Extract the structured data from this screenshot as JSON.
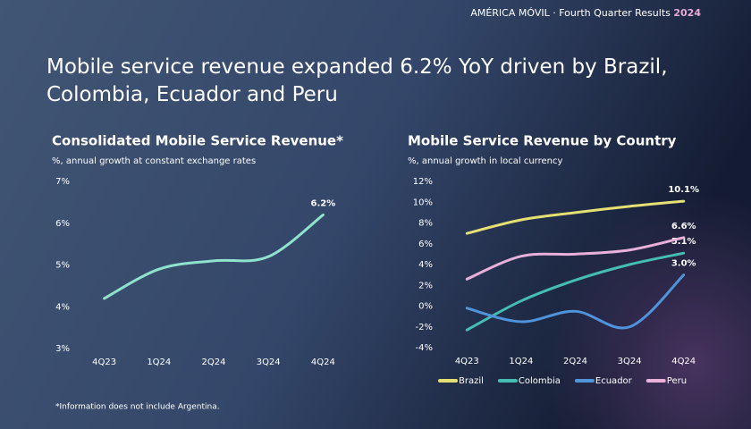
{
  "header": {
    "brand": "AMÉRICA MÓVIL · Fourth Quarter Results",
    "year": "2024"
  },
  "headline": "Mobile service revenue expanded 6.2% YoY driven by Brazil, Colombia, Ecuador and Peru",
  "footnote": "*Information does not include Argentina.",
  "chart_data": [
    {
      "type": "line",
      "title": "Consolidated Mobile Service Revenue*",
      "subtitle": "%, annual growth at constant exchange rates",
      "categories": [
        "4Q23",
        "1Q24",
        "2Q24",
        "3Q24",
        "4Q24"
      ],
      "series": [
        {
          "name": "Consolidated",
          "color": "#8fe3cc",
          "values": [
            4.2,
            4.9,
            5.1,
            5.2,
            6.2
          ],
          "value_labels": [
            null,
            null,
            null,
            null,
            "6.2%"
          ]
        }
      ],
      "legend": false,
      "ylim": [
        3,
        7
      ],
      "yticks": [
        {
          "value": 3,
          "label": "3%"
        },
        {
          "value": 4,
          "label": "4%"
        },
        {
          "value": 5,
          "label": "5%"
        },
        {
          "value": 6,
          "label": "6%"
        },
        {
          "value": 7,
          "label": "7%"
        }
      ]
    },
    {
      "type": "line",
      "title": "Mobile Service Revenue by Country",
      "subtitle": "%, annual growth in local currency",
      "categories": [
        "4Q23",
        "1Q24",
        "2Q24",
        "3Q24",
        "4Q24"
      ],
      "series": [
        {
          "name": "Brazil",
          "color": "#e6df73",
          "values": [
            7.0,
            8.3,
            9.0,
            9.6,
            10.1
          ],
          "value_labels": [
            null,
            null,
            null,
            null,
            "10.1%"
          ]
        },
        {
          "name": "Colombia",
          "color": "#45bdb3",
          "values": [
            -2.3,
            0.5,
            2.5,
            4.0,
            5.1
          ],
          "value_labels": [
            null,
            null,
            null,
            null,
            "5.1%"
          ]
        },
        {
          "name": "Ecuador",
          "color": "#4f93db",
          "values": [
            -0.2,
            -1.5,
            -0.5,
            -2.0,
            3.0
          ],
          "value_labels": [
            null,
            null,
            null,
            null,
            "3.0%"
          ]
        },
        {
          "name": "Peru",
          "color": "#eab0dc",
          "values": [
            2.6,
            4.8,
            5.0,
            5.4,
            6.6
          ],
          "value_labels": [
            null,
            null,
            null,
            null,
            "6.6%"
          ]
        }
      ],
      "legend": "bottom",
      "ylim": [
        -4,
        12
      ],
      "yticks": [
        {
          "value": -4,
          "label": "-4%"
        },
        {
          "value": -2,
          "label": "-2%"
        },
        {
          "value": 0,
          "label": "0%"
        },
        {
          "value": 2,
          "label": "2%"
        },
        {
          "value": 4,
          "label": "4%"
        },
        {
          "value": 6,
          "label": "6%"
        },
        {
          "value": 8,
          "label": "8%"
        },
        {
          "value": 10,
          "label": "10%"
        },
        {
          "value": 12,
          "label": "12%"
        }
      ]
    }
  ]
}
